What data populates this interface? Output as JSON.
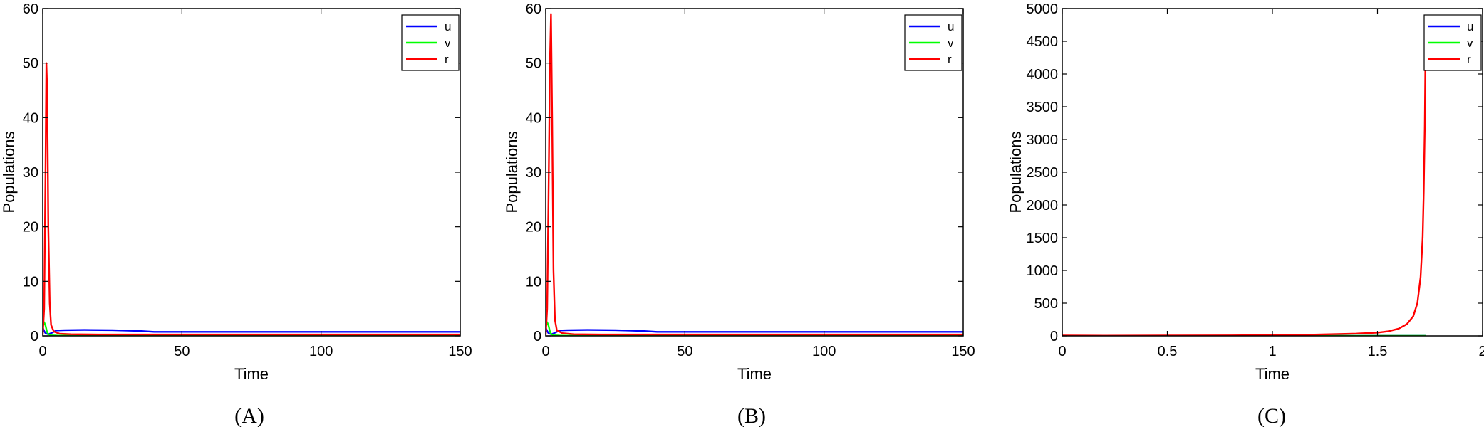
{
  "chart_data": [
    {
      "type": "line",
      "caption": "(A)",
      "xlabel": "Time",
      "ylabel": "Populations",
      "xlim": [
        0,
        150
      ],
      "ylim": [
        0,
        60
      ],
      "xticks": [
        0,
        50,
        100,
        150
      ],
      "yticks": [
        0,
        10,
        20,
        30,
        40,
        50,
        60
      ],
      "legend": "top-right",
      "grid": false,
      "series": [
        {
          "name": "u",
          "color": "#0000ff",
          "x": [
            0,
            0.5,
            1,
            2,
            3,
            5,
            8,
            15,
            25,
            35,
            40,
            60,
            80,
            100,
            120,
            150
          ],
          "y": [
            1.5,
            0.9,
            0.5,
            0.3,
            0.5,
            1.0,
            1.05,
            1.1,
            1.05,
            0.9,
            0.75,
            0.75,
            0.75,
            0.75,
            0.75,
            0.75
          ]
        },
        {
          "name": "v",
          "color": "#00ff00",
          "x": [
            0,
            0.5,
            1,
            1.5,
            2,
            3,
            5,
            10,
            150
          ],
          "y": [
            1.8,
            2.5,
            1.9,
            0.8,
            0.3,
            0.1,
            0.05,
            0.02,
            0.02
          ]
        },
        {
          "name": "r",
          "color": "#ff0000",
          "x": [
            0,
            0.5,
            1,
            1.3,
            1.6,
            2,
            2.5,
            3,
            4,
            6,
            10,
            20,
            40,
            80,
            150
          ],
          "y": [
            0.2,
            5,
            30,
            50,
            45,
            20,
            6,
            2,
            0.8,
            0.4,
            0.3,
            0.25,
            0.25,
            0.25,
            0.25
          ]
        }
      ]
    },
    {
      "type": "line",
      "caption": "(B)",
      "xlabel": "Time",
      "ylabel": "Populations",
      "xlim": [
        0,
        150
      ],
      "ylim": [
        0,
        60
      ],
      "xticks": [
        0,
        50,
        100,
        150
      ],
      "yticks": [
        0,
        10,
        20,
        30,
        40,
        50,
        60
      ],
      "legend": "top-right",
      "grid": false,
      "series": [
        {
          "name": "u",
          "color": "#0000ff",
          "x": [
            0,
            0.5,
            1,
            2,
            3,
            5,
            8,
            15,
            25,
            35,
            40,
            60,
            80,
            100,
            120,
            150
          ],
          "y": [
            1.5,
            0.9,
            0.5,
            0.3,
            0.5,
            1.0,
            1.05,
            1.1,
            1.05,
            0.9,
            0.75,
            0.75,
            0.75,
            0.75,
            0.75,
            0.75
          ]
        },
        {
          "name": "v",
          "color": "#00ff00",
          "x": [
            0,
            0.5,
            1,
            1.5,
            2,
            3,
            5,
            10,
            150
          ],
          "y": [
            1.8,
            2.5,
            1.9,
            0.8,
            0.3,
            0.1,
            0.05,
            0.02,
            0.02
          ]
        },
        {
          "name": "r",
          "color": "#ff0000",
          "x": [
            0,
            0.5,
            1,
            1.5,
            1.9,
            2.3,
            2.8,
            3.3,
            4,
            6,
            10,
            20,
            40,
            80,
            150
          ],
          "y": [
            0.2,
            5,
            25,
            50,
            59,
            40,
            12,
            3,
            1,
            0.5,
            0.3,
            0.25,
            0.25,
            0.25,
            0.25
          ]
        }
      ]
    },
    {
      "type": "line",
      "caption": "(C)",
      "xlabel": "Time",
      "ylabel": "Populations",
      "xlim": [
        0,
        2
      ],
      "ylim": [
        0,
        5000
      ],
      "xticks": [
        0,
        0.5,
        1,
        1.5,
        2
      ],
      "xtick_labels": [
        "0",
        "0.5",
        "1",
        "1.5",
        "2"
      ],
      "yticks": [
        0,
        500,
        1000,
        1500,
        2000,
        2500,
        3000,
        3500,
        4000,
        4500,
        5000
      ],
      "legend": "top-right",
      "grid": false,
      "series": [
        {
          "name": "u",
          "color": "#0000ff",
          "x": [
            0,
            0.5,
            1,
            1.5,
            1.73
          ],
          "y": [
            2,
            1,
            1,
            1,
            1
          ]
        },
        {
          "name": "v",
          "color": "#00ff00",
          "x": [
            0,
            0.5,
            1,
            1.5,
            1.73
          ],
          "y": [
            2,
            1,
            1,
            1,
            1
          ]
        },
        {
          "name": "r",
          "color": "#ff0000",
          "x": [
            0,
            0.2,
            0.5,
            0.8,
            1.0,
            1.2,
            1.4,
            1.5,
            1.55,
            1.6,
            1.64,
            1.67,
            1.69,
            1.705,
            1.715,
            1.72,
            1.725,
            1.73
          ],
          "y": [
            5,
            3,
            5,
            8,
            12,
            20,
            35,
            50,
            70,
            110,
            180,
            300,
            500,
            900,
            1500,
            2200,
            3200,
            4800
          ]
        }
      ]
    }
  ]
}
